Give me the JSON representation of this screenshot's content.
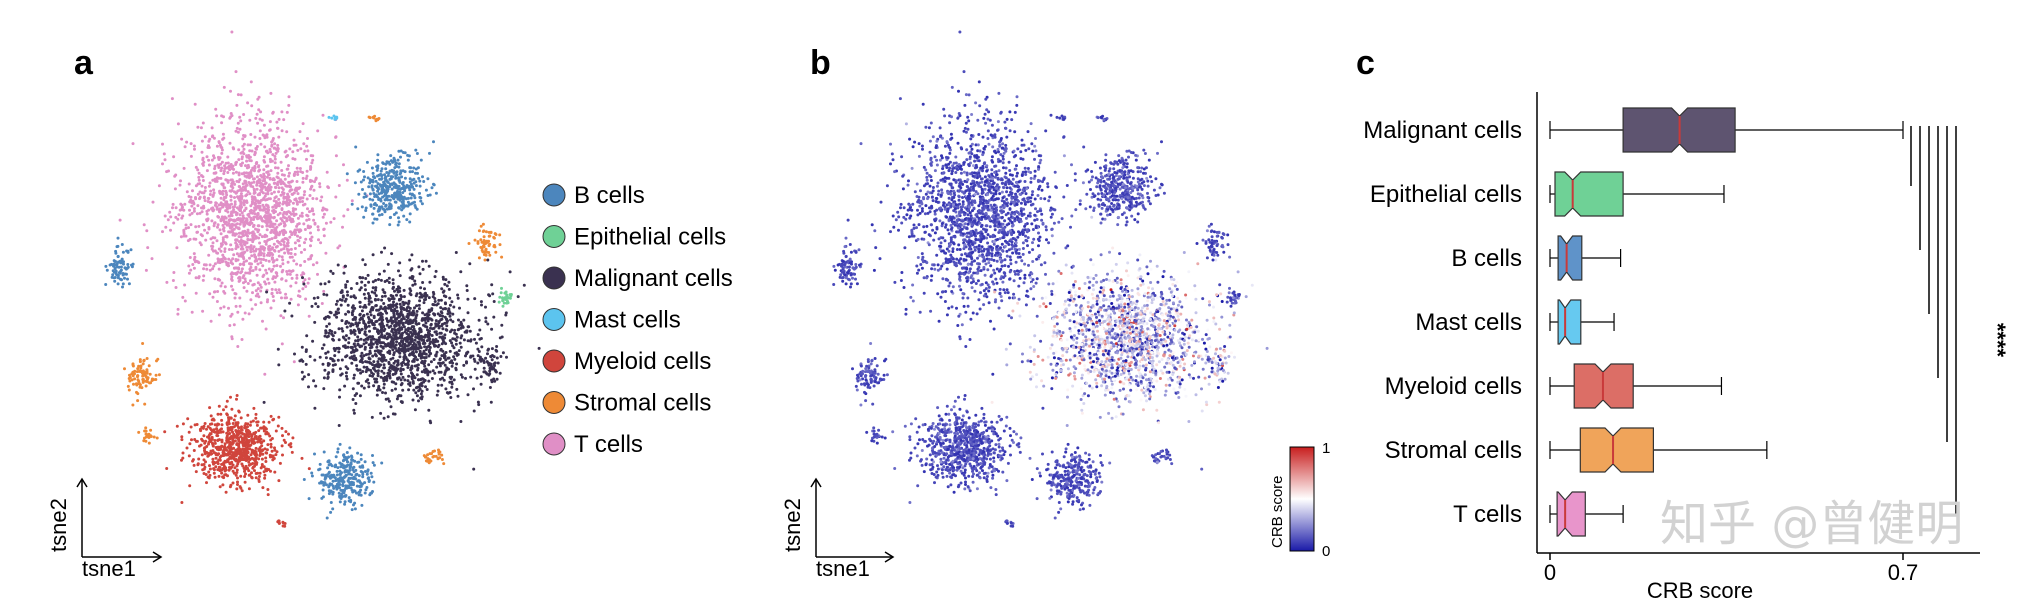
{
  "panels": {
    "a": "a",
    "b": "b",
    "c": "c"
  },
  "tsne_axes": {
    "x": "tsne1",
    "y": "tsne2"
  },
  "colorbar": {
    "label": "CRB score",
    "max_label": "1",
    "min_label": "0",
    "colors": [
      "#1a1aa8",
      "#ffffff",
      "#c81e1e"
    ]
  },
  "watermark": "知乎 @曾健明",
  "chart_data": [
    {
      "type": "scatter",
      "panel": "a",
      "xlabel": "tsne1",
      "ylabel": "tsne2",
      "legend": [
        {
          "name": "B cells",
          "color": "#4c86bd"
        },
        {
          "name": "Epithelial cells",
          "color": "#6fd196"
        },
        {
          "name": "Malignant cells",
          "color": "#3a3150"
        },
        {
          "name": "Mast cells",
          "color": "#5cc4ef"
        },
        {
          "name": "Myeloid cells",
          "color": "#d0453c"
        },
        {
          "name": "Stromal cells",
          "color": "#ee8a36"
        },
        {
          "name": "T cells",
          "color": "#e08fc6"
        }
      ],
      "legend_position": "right"
    },
    {
      "type": "scatter",
      "panel": "b",
      "xlabel": "tsne1",
      "ylabel": "tsne2",
      "color_scale": "CRB score",
      "color_range": [
        0,
        1
      ]
    },
    {
      "type": "box",
      "panel": "c",
      "xlabel": "CRB score",
      "xticks": [
        "0",
        "0.7"
      ],
      "xlim": [
        0,
        0.7
      ],
      "significance": "****",
      "categories": [
        "Malignant cells",
        "Epithelial cells",
        "B cells",
        "Mast cells",
        "Myeloid cells",
        "Stromal cells",
        "T cells"
      ],
      "boxes": [
        {
          "name": "Malignant cells",
          "color": "#5e5470",
          "min": 0.0,
          "q1": 0.145,
          "median": 0.257,
          "q3": 0.367,
          "max": 0.7
        },
        {
          "name": "Epithelial cells",
          "color": "#6fd196",
          "min": 0.0,
          "q1": 0.01,
          "median": 0.045,
          "q3": 0.145,
          "max": 0.345
        },
        {
          "name": "B cells",
          "color": "#5f93c9",
          "min": 0.0,
          "q1": 0.016,
          "median": 0.033,
          "q3": 0.063,
          "max": 0.14
        },
        {
          "name": "Mast cells",
          "color": "#66c9f0",
          "min": 0.0,
          "q1": 0.016,
          "median": 0.03,
          "q3": 0.061,
          "max": 0.127
        },
        {
          "name": "Myeloid cells",
          "color": "#dc6e66",
          "min": 0.0,
          "q1": 0.048,
          "median": 0.105,
          "q3": 0.165,
          "max": 0.34
        },
        {
          "name": "Stromal cells",
          "color": "#f0a45a",
          "min": 0.0,
          "q1": 0.06,
          "median": 0.125,
          "q3": 0.205,
          "max": 0.43
        },
        {
          "name": "T cells",
          "color": "#e895cb",
          "min": 0.0,
          "q1": 0.014,
          "median": 0.03,
          "q3": 0.07,
          "max": 0.145
        }
      ]
    }
  ]
}
